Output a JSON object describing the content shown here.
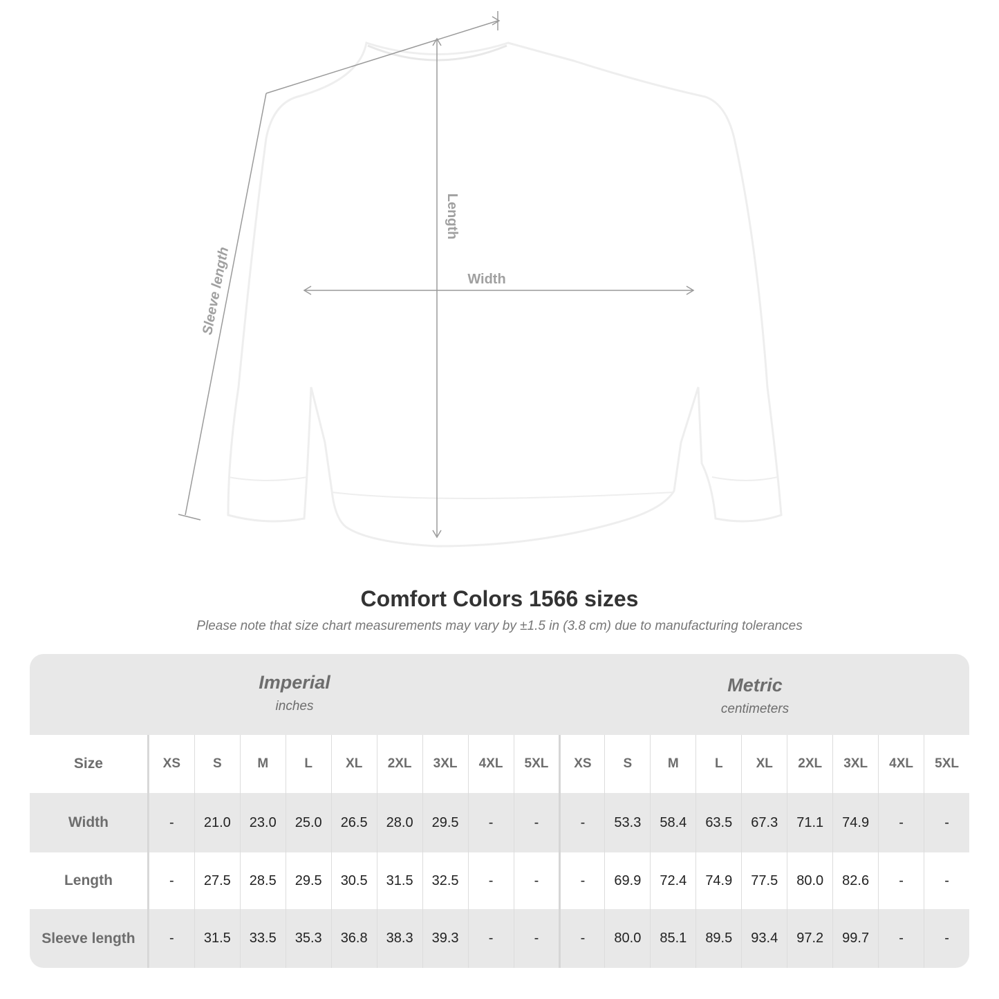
{
  "diagram": {
    "labels": {
      "length": "Length",
      "width": "Width",
      "sleeve": "Sleeve length"
    },
    "garment_color": "#ffffff",
    "line_color": "#9a9a9a"
  },
  "title": "Comfort Colors 1566 sizes",
  "subtitle": "Please note that size chart measurements may vary by ±1.5 in (3.8 cm) due to manufacturing tolerances",
  "table": {
    "imperial": {
      "name": "Imperial",
      "unit": "inches"
    },
    "metric": {
      "name": "Metric",
      "unit": "centimeters"
    },
    "size_label": "Size",
    "sizes": [
      "XS",
      "S",
      "M",
      "L",
      "XL",
      "2XL",
      "3XL",
      "4XL",
      "5XL"
    ],
    "rows": [
      {
        "label": "Width",
        "imperial": [
          "-",
          "21.0",
          "23.0",
          "25.0",
          "26.5",
          "28.0",
          "29.5",
          "-",
          "-"
        ],
        "metric": [
          "-",
          "53.3",
          "58.4",
          "63.5",
          "67.3",
          "71.1",
          "74.9",
          "-",
          "-"
        ]
      },
      {
        "label": "Length",
        "imperial": [
          "-",
          "27.5",
          "28.5",
          "29.5",
          "30.5",
          "31.5",
          "32.5",
          "-",
          "-"
        ],
        "metric": [
          "-",
          "69.9",
          "72.4",
          "74.9",
          "77.5",
          "80.0",
          "82.6",
          "-",
          "-"
        ]
      },
      {
        "label": "Sleeve length",
        "imperial": [
          "-",
          "31.5",
          "33.5",
          "35.3",
          "36.8",
          "38.3",
          "39.3",
          "-",
          "-"
        ],
        "metric": [
          "-",
          "80.0",
          "85.1",
          "89.5",
          "93.4",
          "97.2",
          "99.7",
          "-",
          "-"
        ]
      }
    ]
  }
}
